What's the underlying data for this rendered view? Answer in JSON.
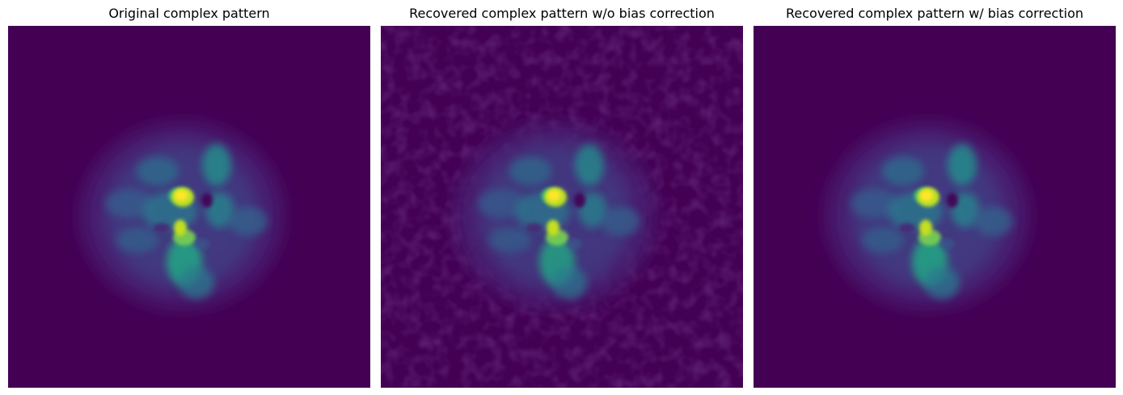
{
  "figure": {
    "panels": [
      {
        "title": "Original complex pattern",
        "noisy_background": false
      },
      {
        "title": "Recovered complex pattern w/o bias correction",
        "noisy_background": true
      },
      {
        "title": "Recovered complex pattern w/ bias correction",
        "noisy_background": false
      }
    ],
    "colormap": "viridis",
    "background_color": "#440154"
  }
}
